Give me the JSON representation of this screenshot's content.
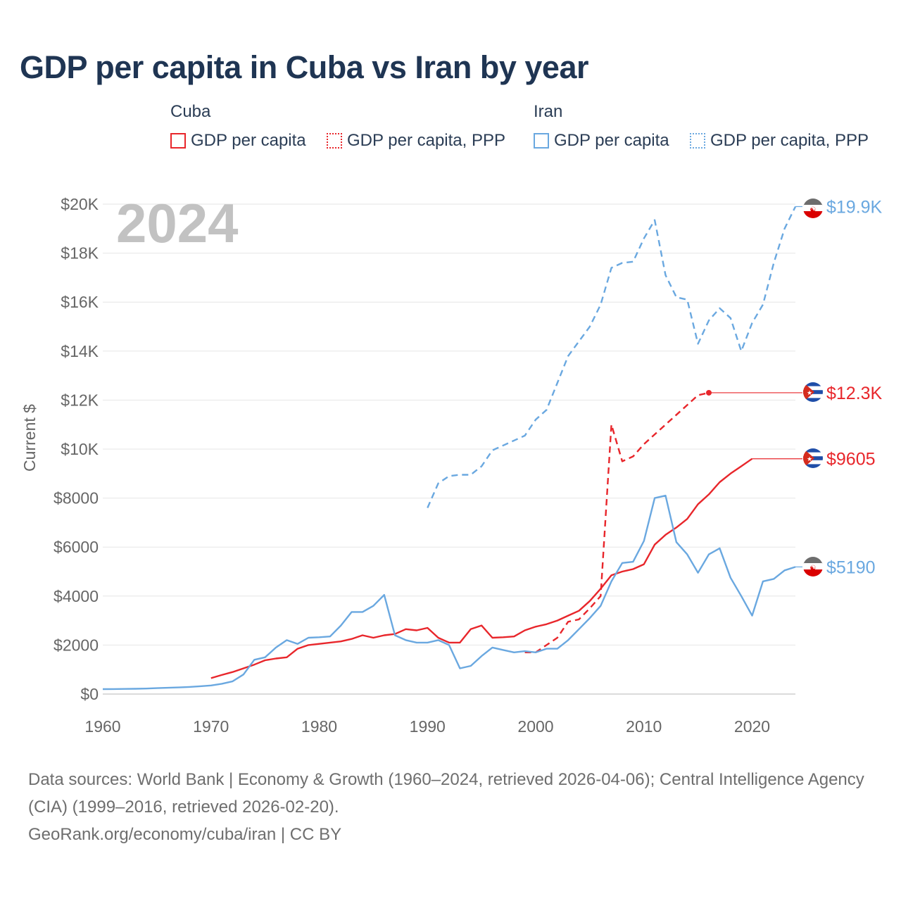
{
  "title": "GDP per capita in Cuba vs Iran by year",
  "legend": {
    "groups": [
      {
        "name": "Cuba",
        "items": [
          {
            "label": "GDP per capita",
            "color": "#e8262b",
            "style": "solid"
          },
          {
            "label": "GDP per capita, PPP",
            "color": "#e8262b",
            "style": "dotted"
          }
        ]
      },
      {
        "name": "Iran",
        "items": [
          {
            "label": "GDP per capita",
            "color": "#6aa8e0",
            "style": "solid"
          },
          {
            "label": "GDP per capita, PPP",
            "color": "#6aa8e0",
            "style": "dotted"
          }
        ]
      }
    ]
  },
  "year_overlay": "2024",
  "footer": {
    "sources": "Data sources: World Bank | Economy & Growth (1960–2024, retrieved 2026-04-06); Central Intelligence Agency (CIA) (1999–2016, retrieved 2026-02-20).",
    "attribution": "GeoRank.org/economy/cuba/iran | CC BY"
  },
  "chart_data": {
    "type": "line",
    "title": "GDP per capita in Cuba vs Iran by year",
    "ylabel": "Current $",
    "xlabel": "",
    "xlim": [
      1960,
      2024
    ],
    "ylim": [
      0,
      20000
    ],
    "x_ticks": [
      1960,
      1970,
      1980,
      1990,
      2000,
      2010,
      2020
    ],
    "x_tick_labels": [
      "1960",
      "1970",
      "1980",
      "1990",
      "2000",
      "2010",
      "2020"
    ],
    "y_ticks": [
      0,
      2000,
      4000,
      6000,
      8000,
      10000,
      12000,
      14000,
      16000,
      18000,
      20000
    ],
    "y_tick_labels": [
      "$0",
      "$2000",
      "$4000",
      "$6000",
      "$8000",
      "$10K",
      "$12K",
      "$14K",
      "$16K",
      "$18K",
      "$20K"
    ],
    "grid": true,
    "legend_position": "top",
    "series": [
      {
        "name": "Cuba GDP per capita",
        "color": "#e8262b",
        "style": "solid",
        "end_label": "$9605",
        "x": [
          1970,
          1971,
          1972,
          1973,
          1974,
          1975,
          1976,
          1977,
          1978,
          1979,
          1980,
          1981,
          1982,
          1983,
          1984,
          1985,
          1986,
          1987,
          1988,
          1989,
          1990,
          1991,
          1992,
          1993,
          1994,
          1995,
          1996,
          1997,
          1998,
          1999,
          2000,
          2001,
          2002,
          2003,
          2004,
          2005,
          2006,
          2007,
          2008,
          2009,
          2010,
          2011,
          2012,
          2013,
          2014,
          2015,
          2016,
          2017,
          2018,
          2019,
          2020
        ],
        "y": [
          650,
          780,
          900,
          1050,
          1200,
          1380,
          1450,
          1500,
          1850,
          2000,
          2050,
          2100,
          2150,
          2250,
          2400,
          2300,
          2400,
          2450,
          2650,
          2600,
          2700,
          2300,
          2100,
          2100,
          2650,
          2800,
          2300,
          2320,
          2350,
          2600,
          2750,
          2850,
          3000,
          3200,
          3400,
          3800,
          4300,
          4850,
          5000,
          5100,
          5300,
          6100,
          6500,
          6800,
          7150,
          7750,
          8150,
          8650,
          9000,
          9300,
          9605
        ]
      },
      {
        "name": "Cuba GDP per capita, PPP",
        "color": "#e8262b",
        "style": "dashed",
        "end_label": "$12.3K",
        "x": [
          1999,
          2000,
          2001,
          2002,
          2003,
          2004,
          2005,
          2006,
          2007,
          2008,
          2009,
          2010,
          2011,
          2012,
          2013,
          2014,
          2015,
          2016
        ],
        "y": [
          1700,
          1700,
          2000,
          2300,
          2950,
          3050,
          3500,
          4000,
          11000,
          9500,
          9700,
          10200,
          10600,
          11000,
          11400,
          11800,
          12200,
          12300
        ]
      },
      {
        "name": "Iran GDP per capita",
        "color": "#6aa8e0",
        "style": "solid",
        "end_label": "$5190",
        "x": [
          1960,
          1961,
          1962,
          1963,
          1964,
          1965,
          1966,
          1967,
          1968,
          1969,
          1970,
          1971,
          1972,
          1973,
          1974,
          1975,
          1976,
          1977,
          1978,
          1979,
          1980,
          1981,
          1982,
          1983,
          1984,
          1985,
          1986,
          1987,
          1988,
          1989,
          1990,
          1991,
          1992,
          1993,
          1994,
          1995,
          1996,
          1997,
          1998,
          1999,
          2000,
          2001,
          2002,
          2003,
          2004,
          2005,
          2006,
          2007,
          2008,
          2009,
          2010,
          2011,
          2012,
          2013,
          2014,
          2015,
          2016,
          2017,
          2018,
          2019,
          2020,
          2021,
          2022,
          2023,
          2024
        ],
        "y": [
          200,
          205,
          210,
          215,
          225,
          240,
          255,
          270,
          290,
          320,
          350,
          420,
          520,
          800,
          1400,
          1500,
          1900,
          2200,
          2050,
          2300,
          2320,
          2350,
          2800,
          3350,
          3350,
          3600,
          4050,
          2400,
          2200,
          2100,
          2100,
          2200,
          2000,
          1050,
          1150,
          1550,
          1900,
          1800,
          1700,
          1750,
          1700,
          1850,
          1850,
          2200,
          2650,
          3100,
          3600,
          4600,
          5350,
          5400,
          6250,
          8000,
          8100,
          6200,
          5700,
          4950,
          5700,
          5950,
          4750,
          4000,
          3200,
          4600,
          4700,
          5050,
          5190
        ]
      },
      {
        "name": "Iran GDP per capita, PPP",
        "color": "#6aa8e0",
        "style": "dashed",
        "end_label": "$19.9K",
        "x": [
          1990,
          1991,
          1992,
          1993,
          1994,
          1995,
          1996,
          1997,
          1998,
          1999,
          2000,
          2001,
          2002,
          2003,
          2004,
          2005,
          2006,
          2007,
          2008,
          2009,
          2010,
          2011,
          2012,
          2013,
          2014,
          2015,
          2016,
          2017,
          2018,
          2019,
          2020,
          2021,
          2022,
          2023,
          2024
        ],
        "y": [
          7600,
          8600,
          8900,
          8950,
          8950,
          9300,
          9950,
          10150,
          10350,
          10550,
          11200,
          11600,
          12700,
          13800,
          14400,
          15000,
          15900,
          17400,
          17600,
          17650,
          18600,
          19350,
          17100,
          16200,
          16100,
          14300,
          15250,
          15750,
          15350,
          14000,
          15150,
          15900,
          17600,
          19000,
          19900
        ]
      }
    ]
  }
}
